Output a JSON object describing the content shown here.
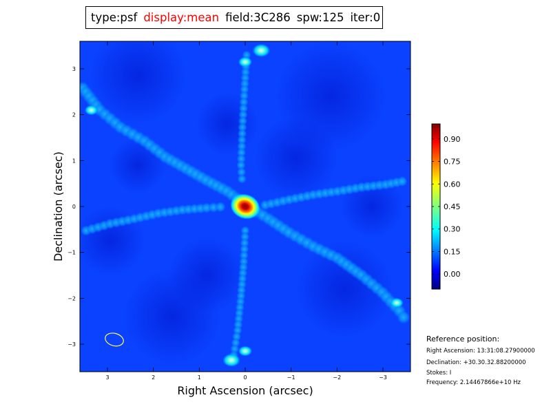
{
  "header": {
    "type": "type:psf",
    "display": "display:mean",
    "display_color": "#ff0000",
    "field": "field:3C286",
    "spw": "spw:125",
    "iter": "iter:0"
  },
  "chart_data": {
    "type": "heatmap",
    "title": "",
    "xlabel": "Right Ascension (arcsec)",
    "ylabel": "Declination (arcsec)",
    "xlim": [
      3.6,
      -3.6
    ],
    "ylim": [
      -3.6,
      3.6
    ],
    "x_ticks": [
      3,
      2,
      1,
      0,
      -1,
      -2,
      -3
    ],
    "x_tick_labels": [
      "3",
      "2",
      "1",
      "0",
      "−1",
      "−2",
      "−3"
    ],
    "y_ticks": [
      3,
      2,
      1,
      0,
      -1,
      -2,
      -3
    ],
    "y_tick_labels": [
      "3",
      "2",
      "1",
      "0",
      "−1",
      "−2",
      "−3"
    ],
    "colormap": "jet",
    "colorbar": {
      "range": [
        -0.1,
        1.0
      ],
      "ticks": [
        0.9,
        0.75,
        0.6,
        0.45,
        0.3,
        0.15,
        0.0
      ],
      "tick_labels": [
        "0.90",
        "0.75",
        "0.60",
        "0.45",
        "0.30",
        "0.15",
        "0.00"
      ]
    },
    "peak": {
      "x": 0.0,
      "y": 0.0,
      "value": 1.0
    },
    "sidelobe_features": [
      {
        "x": -0.35,
        "y": 3.4,
        "value": 0.5
      },
      {
        "x": 0.0,
        "y": 3.15,
        "value": 0.3
      },
      {
        "x": 0.3,
        "y": -3.35,
        "value": 0.5
      },
      {
        "x": 0.0,
        "y": -3.15,
        "value": 0.3
      },
      {
        "x": 3.35,
        "y": 2.1,
        "value": 0.28
      },
      {
        "x": -3.3,
        "y": -2.1,
        "value": 0.28
      }
    ],
    "beam_ellipse": {
      "x": 2.85,
      "y": -2.9,
      "color": "#ffff44"
    }
  },
  "reference": {
    "title": "Reference position:",
    "ra": "Right Ascension: 13:31:08.27900000",
    "dec": "Declination: +30.30.32.88200000",
    "stokes": "Stokes: I",
    "freq": "Frequency: 2.14467866e+10 Hz"
  }
}
